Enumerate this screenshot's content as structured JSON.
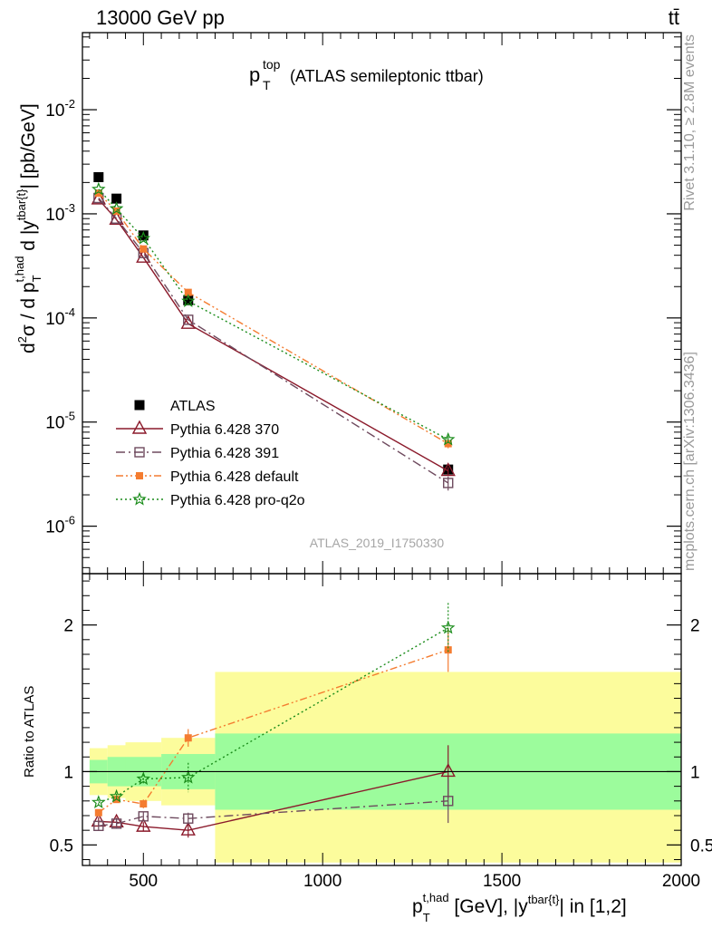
{
  "header": {
    "left": "13000 GeV pp",
    "right": "tt̄"
  },
  "plot_title": {
    "main": "p",
    "sup": "top",
    "sub": "T",
    "suffix": "(ATLAS semileptonic ttbar)"
  },
  "side_labels": {
    "rivet": "Rivet 3.1.10, ≥ 2.8M events",
    "mcplots": "mcplots.cern.ch [arXiv:1306.3436]"
  },
  "analysis_id": "ATLAS_2019_I1750330",
  "ylabel_main": "d²σ / d p_T^{t,had} d |y^{tbar{t}}| [pb/GeV]",
  "ylabel_ratio": "Ratio to ATLAS",
  "xlabel": "p_T^{t,had} [GeV], |y^{tbar{t}}| in [1,2]",
  "colors": {
    "ATLAS": "#000000",
    "p370": "#8b1a2b",
    "p391": "#6e4a5e",
    "pdefault": "#f47c30",
    "pq2o": "#1a8c1a",
    "band_inner": "#9cfc9c",
    "band_outer": "#fcfc9c"
  },
  "chart_data": [
    {
      "type": "scatter",
      "panel": "main",
      "yscale": "log",
      "xlim": [
        330,
        2000
      ],
      "ylim": [
        3.5e-07,
        0.055
      ],
      "yticks": [
        {
          "value": 1e-06,
          "label": "10^-6"
        },
        {
          "value": 1e-05,
          "label": "10^-5"
        },
        {
          "value": 0.0001,
          "label": "10^-4"
        },
        {
          "value": 0.001,
          "label": "10^-3"
        },
        {
          "value": 0.01,
          "label": "10^-2"
        }
      ],
      "x": [
        375,
        425,
        500,
        625,
        1350
      ],
      "series": [
        {
          "name": "ATLAS",
          "key": "ATLAS",
          "marker": "square-filled",
          "line": "none",
          "values": [
            0.00225,
            0.0014,
            0.00062,
            0.000148,
            3.5e-06
          ],
          "err": [
            0,
            0,
            0,
            0,
            3e-07
          ]
        },
        {
          "name": "Pythia 6.428 370",
          "key": "p370",
          "marker": "triangle-open",
          "line": "solid",
          "values": [
            0.00138,
            0.00088,
            0.00038,
            8.8e-05,
            3.4e-06
          ],
          "err": [
            0,
            0,
            0,
            0,
            3e-07
          ]
        },
        {
          "name": "Pythia 6.428 391",
          "key": "p391",
          "marker": "square-open",
          "line": "dashdot",
          "values": [
            0.00142,
            0.0009,
            0.00042,
            9.6e-05,
            2.6e-06
          ],
          "err": [
            0,
            0,
            0,
            0,
            4e-07
          ]
        },
        {
          "name": "Pythia 6.428 default",
          "key": "pdefault",
          "marker": "square-filled-small",
          "line": "dashdotdot",
          "values": [
            0.00158,
            0.00106,
            0.00046,
            0.000176,
            6.2e-06
          ],
          "err": [
            0,
            0,
            0,
            0,
            6e-07
          ]
        },
        {
          "name": "Pythia 6.428 pro-q2o",
          "key": "pq2o",
          "marker": "star",
          "line": "dotted",
          "values": [
            0.00172,
            0.00112,
            0.00058,
            0.000145,
            6.8e-06
          ],
          "err": [
            0,
            0,
            0,
            0,
            5e-07
          ]
        }
      ],
      "legend": "lower-left"
    },
    {
      "type": "scatter",
      "panel": "ratio",
      "xlim": [
        330,
        2000
      ],
      "ylim": [
        0.36,
        2.35
      ],
      "xticks": [
        500,
        1000,
        1500,
        2000
      ],
      "yticks": [
        0.5,
        1,
        2
      ],
      "bands": [
        {
          "xmin": 350,
          "xmax": 400,
          "inner": [
            0.92,
            1.08
          ],
          "outer": [
            0.84,
            1.16
          ]
        },
        {
          "xmin": 400,
          "xmax": 450,
          "inner": [
            0.9,
            1.1
          ],
          "outer": [
            0.82,
            1.18
          ]
        },
        {
          "xmin": 450,
          "xmax": 550,
          "inner": [
            0.9,
            1.1
          ],
          "outer": [
            0.8,
            1.2
          ]
        },
        {
          "xmin": 550,
          "xmax": 700,
          "inner": [
            0.88,
            1.12
          ],
          "outer": [
            0.77,
            1.23
          ]
        },
        {
          "xmin": 700,
          "xmax": 2000,
          "inner": [
            0.74,
            1.26
          ],
          "outer": [
            0.38,
            1.68
          ]
        }
      ],
      "x": [
        375,
        425,
        500,
        625,
        1350
      ],
      "series": [
        {
          "name": "Pythia 6.428 370",
          "key": "p370",
          "values": [
            0.66,
            0.655,
            0.625,
            0.6,
            1.0
          ],
          "err": [
            0.03,
            0.03,
            0.03,
            0.05,
            0.18
          ]
        },
        {
          "name": "Pythia 6.428 391",
          "key": "p391",
          "values": [
            0.63,
            0.645,
            0.695,
            0.68,
            0.8
          ],
          "err": [
            0.03,
            0.03,
            0.03,
            0.04,
            0.15
          ]
        },
        {
          "name": "Pythia 6.428 default",
          "key": "pdefault",
          "values": [
            0.72,
            0.81,
            0.78,
            1.23,
            1.83
          ],
          "err": [
            0.02,
            0.02,
            0.03,
            0.06,
            0.15
          ]
        },
        {
          "name": "Pythia 6.428 pro-q2o",
          "key": "pq2o",
          "values": [
            0.79,
            0.83,
            0.95,
            0.96,
            1.98
          ],
          "err": [
            0.02,
            0.02,
            0.03,
            0.1,
            0.17
          ]
        }
      ]
    }
  ]
}
